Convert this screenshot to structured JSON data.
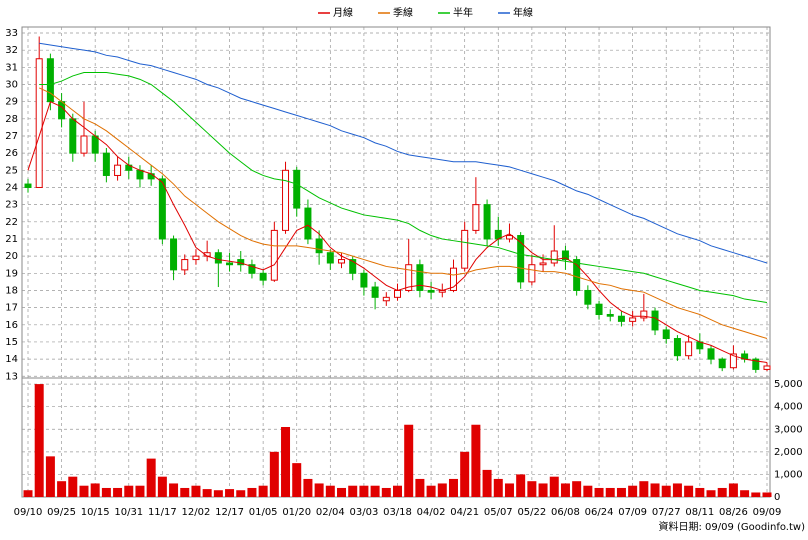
{
  "chart_data": {
    "type": "candlestick",
    "categories": [
      "09/10",
      null,
      null,
      "09/25",
      null,
      null,
      "10/15",
      null,
      null,
      "10/31",
      null,
      null,
      "11/17",
      null,
      null,
      "12/02",
      null,
      null,
      "12/17",
      null,
      null,
      "01/05",
      null,
      null,
      "01/20",
      null,
      null,
      "02/04",
      null,
      null,
      "03/03",
      null,
      null,
      "03/18",
      null,
      null,
      "04/02",
      null,
      null,
      "04/21",
      null,
      null,
      "05/07",
      null,
      null,
      "05/22",
      null,
      null,
      "06/08",
      null,
      null,
      "06/24",
      null,
      null,
      "07/09",
      null,
      null,
      "07/27",
      null,
      null,
      "08/11",
      null,
      null,
      "08/26",
      null,
      null,
      "09/09"
    ],
    "open": [
      24.2,
      24,
      31.5,
      29,
      28,
      26,
      27,
      26,
      24.7,
      25.3,
      25,
      24.8,
      24.5,
      21,
      19.2,
      19.8,
      20,
      20.2,
      19.6,
      19.8,
      19.5,
      19,
      18.6,
      21.5,
      25,
      22.8,
      21,
      20.2,
      19.6,
      19.8,
      19,
      18.2,
      17.4,
      17.6,
      18,
      19.5,
      18,
      17.9,
      18,
      19.3,
      21.5,
      23,
      21.5,
      21,
      21.2,
      18.5,
      19.5,
      19.6,
      20.3,
      19.8,
      18,
      17.2,
      16.6,
      16.5,
      16.2,
      16.4,
      16.8,
      15.7,
      15.2,
      14.2,
      15,
      14.6,
      14,
      13.5,
      14.3,
      14,
      13.4
    ],
    "high": [
      24.5,
      32.8,
      31.8,
      29.5,
      28.3,
      29,
      27.3,
      26.3,
      25.8,
      25.8,
      25.3,
      25.3,
      24.7,
      21.2,
      20.1,
      20.4,
      20.9,
      20.4,
      20.2,
      20.3,
      19.8,
      19.2,
      22,
      25.5,
      25.2,
      23.3,
      21.5,
      20.4,
      20.2,
      20,
      19.2,
      18.5,
      17.9,
      18.4,
      21,
      19.8,
      18.5,
      18.4,
      19.8,
      22,
      24.6,
      23.3,
      22.3,
      21.9,
      21.4,
      20.1,
      20.1,
      21.8,
      20.6,
      20,
      18.3,
      17.4,
      16.9,
      16.8,
      16.8,
      17.8,
      17,
      15.9,
      15.4,
      15.4,
      15.5,
      14.8,
      14.1,
      14.8,
      14.5,
      14.1,
      13.8
    ],
    "low": [
      23.7,
      24,
      28.5,
      27.5,
      25.5,
      25.8,
      25.5,
      24.3,
      24.4,
      24.5,
      24,
      24.1,
      20.7,
      18.6,
      18.9,
      19.5,
      19.7,
      18.2,
      19.1,
      19.1,
      18.7,
      18.3,
      18.5,
      21.3,
      22.3,
      20.7,
      19.5,
      19.2,
      19.3,
      18.6,
      17.7,
      16.9,
      17.1,
      17.4,
      17.9,
      17.6,
      17.5,
      17.6,
      17.9,
      19.1,
      21.3,
      20.6,
      20.6,
      20.8,
      18.1,
      18.3,
      19.1,
      19.4,
      19.2,
      17.7,
      16.9,
      16.3,
      16.2,
      15.9,
      15.9,
      16.2,
      15.4,
      14.9,
      13.9,
      14,
      14.3,
      13.7,
      13.3,
      13.4,
      13.8,
      13.2,
      13.3
    ],
    "close": [
      24,
      31.5,
      29,
      28,
      26,
      27,
      26,
      24.7,
      25.3,
      25,
      24.5,
      24.5,
      21,
      19.2,
      19.8,
      20,
      20.2,
      19.6,
      19.5,
      19.5,
      19,
      18.6,
      21.5,
      25,
      22.8,
      21,
      20.2,
      19.6,
      19.8,
      19,
      18.2,
      17.6,
      17.6,
      18,
      19.5,
      18,
      17.9,
      18,
      19.3,
      21.5,
      23,
      21,
      21,
      21.2,
      18.5,
      19.5,
      19.6,
      20.3,
      19.8,
      18,
      17.2,
      16.6,
      16.5,
      16.2,
      16.4,
      16.8,
      15.7,
      15.2,
      14.2,
      15,
      14.6,
      14,
      13.5,
      14.3,
      14,
      13.4,
      13.6
    ],
    "up_color": "#e00000",
    "down_color": "#00b000",
    "series": [
      {
        "name": "月線",
        "color": "#e00000",
        "values": [
          25,
          27,
          29,
          28.7,
          28,
          27.5,
          27,
          26.5,
          25.8,
          25.3,
          25,
          24.8,
          24.3,
          23,
          21.8,
          20.5,
          20,
          19.8,
          19.7,
          19.6,
          19.4,
          19.2,
          19.5,
          20.5,
          21.5,
          21.8,
          21.3,
          20.5,
          20,
          19.7,
          19.3,
          18.8,
          18.3,
          18,
          18.2,
          18.3,
          18.2,
          18,
          18.2,
          18.8,
          19.8,
          20.5,
          21,
          21.3,
          20.8,
          20.2,
          19.8,
          19.8,
          19.9,
          19.5,
          18.8,
          18,
          17.3,
          16.8,
          16.5,
          16.5,
          16.4,
          16,
          15.6,
          15.3,
          15,
          14.8,
          14.5,
          14.2,
          14,
          13.9,
          13.8
        ]
      },
      {
        "name": "季線",
        "color": "#e07000",
        "values": [
          null,
          29.8,
          29.5,
          29,
          28.5,
          28,
          27.7,
          27.3,
          26.8,
          26.3,
          25.8,
          25.3,
          24.8,
          24.2,
          23.5,
          23,
          22.5,
          22,
          21.6,
          21.2,
          20.9,
          20.7,
          20.6,
          20.6,
          20.6,
          20.5,
          20.4,
          20.3,
          20.2,
          20,
          19.8,
          19.6,
          19.4,
          19.3,
          19.2,
          19.1,
          19,
          19,
          18.9,
          19,
          19.2,
          19.3,
          19.4,
          19.4,
          19.3,
          19.2,
          19.1,
          19.1,
          19,
          18.8,
          18.6,
          18.4,
          18.3,
          18.1,
          18,
          17.9,
          17.6,
          17.3,
          17,
          16.8,
          16.6,
          16.3,
          16,
          15.8,
          15.6,
          15.4,
          15.2
        ]
      },
      {
        "name": "半年",
        "color": "#00c000",
        "values": [
          null,
          30,
          30,
          30.2,
          30.5,
          30.7,
          30.7,
          30.7,
          30.6,
          30.5,
          30.3,
          30,
          29.5,
          29,
          28.4,
          27.8,
          27.2,
          26.6,
          26,
          25.5,
          25,
          24.7,
          24.5,
          24.4,
          24.2,
          23.8,
          23.4,
          23.1,
          22.8,
          22.6,
          22.4,
          22.3,
          22.2,
          22.1,
          21.9,
          21.5,
          21.2,
          21,
          20.9,
          20.8,
          20.7,
          20.6,
          20.5,
          20.3,
          20.1,
          20,
          19.9,
          19.8,
          19.7,
          19.6,
          19.5,
          19.4,
          19.3,
          19.2,
          19.1,
          19,
          18.8,
          18.6,
          18.4,
          18.2,
          18,
          17.9,
          17.8,
          17.7,
          17.5,
          17.4,
          17.3
        ]
      },
      {
        "name": "年線",
        "color": "#1f5fcf",
        "values": [
          null,
          32.4,
          32.3,
          32.2,
          32.1,
          32,
          31.9,
          31.7,
          31.6,
          31.4,
          31.2,
          31.1,
          30.9,
          30.7,
          30.5,
          30.3,
          30,
          29.8,
          29.5,
          29.2,
          29,
          28.8,
          28.6,
          28.4,
          28.2,
          28,
          27.8,
          27.6,
          27.3,
          27.1,
          26.9,
          26.6,
          26.4,
          26.1,
          25.9,
          25.8,
          25.7,
          25.6,
          25.5,
          25.5,
          25.5,
          25.4,
          25.3,
          25.2,
          25,
          24.8,
          24.6,
          24.4,
          24.1,
          23.8,
          23.6,
          23.3,
          23,
          22.7,
          22.4,
          22.2,
          21.9,
          21.6,
          21.3,
          21.1,
          20.9,
          20.6,
          20.4,
          20.2,
          20,
          19.8,
          19.6
        ]
      }
    ],
    "volume": {
      "color": "#e00000",
      "axis": "y2",
      "values": [
        300,
        5000,
        1800,
        700,
        900,
        500,
        600,
        400,
        400,
        500,
        500,
        1700,
        900,
        600,
        400,
        500,
        350,
        300,
        350,
        300,
        400,
        500,
        2000,
        3100,
        1500,
        800,
        600,
        500,
        400,
        500,
        500,
        500,
        400,
        500,
        3200,
        800,
        500,
        600,
        800,
        2000,
        3200,
        1200,
        800,
        600,
        1000,
        700,
        600,
        900,
        600,
        700,
        500,
        400,
        400,
        400,
        500,
        700,
        600,
        500,
        600,
        500,
        400,
        300,
        400,
        600,
        300,
        200,
        200
      ]
    },
    "ylim": [
      12.9,
      33.35
    ],
    "yticks": [
      13,
      14,
      15,
      16,
      17,
      18,
      19,
      20,
      21,
      22,
      23,
      24,
      25,
      26,
      27,
      28,
      29,
      30,
      31,
      32,
      33
    ],
    "y2lim": [
      0,
      5270
    ],
    "y2ticks": [
      0,
      {
        "value": 1000,
        "label": "1,000"
      },
      {
        "value": 2000,
        "label": "2,000"
      },
      {
        "value": 3000,
        "label": "3,000"
      },
      {
        "value": 4000,
        "label": "4,000"
      },
      {
        "value": 5000,
        "label": "5,000"
      }
    ],
    "grid": true,
    "legend": "top",
    "footer": "資料日期: 09/09 (Goodinfo.tw)"
  }
}
